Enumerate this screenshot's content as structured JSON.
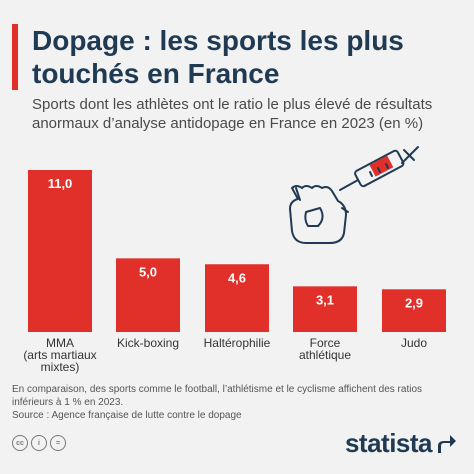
{
  "title": "Dopage : les sports les plus touchés en France",
  "subtitle": "Sports dont les athlètes ont le ratio le plus élevé de résultats anormaux d’analyse antidopage en France en 2023 (en %)",
  "footnote": "En comparaison, des sports comme le football, l’athlétisme et le cyclisme affichent des ratios inférieurs à 1 % en 2023.",
  "source": "Source : Agence française de lutte contre le dopage",
  "brand": "statista",
  "license_icons": [
    "cc",
    "i",
    "="
  ],
  "colors": {
    "accent": "#e1302a",
    "bar": "#e1302a",
    "title": "#1f3a52"
  },
  "icons": {
    "illustration": "syringe-glove-icon",
    "logo": "statista-logo-icon"
  },
  "chart_data": {
    "type": "bar",
    "categories": [
      [
        "MMA",
        "(arts martiaux",
        "mixtes)"
      ],
      [
        "Kick-boxing"
      ],
      [
        "Haltérophilie"
      ],
      [
        "Force",
        "athlétique"
      ],
      [
        "Judo"
      ]
    ],
    "values": [
      11.0,
      5.0,
      4.6,
      3.1,
      2.9
    ],
    "value_labels": [
      "11,0",
      "5,0",
      "4,6",
      "3,1",
      "2,9"
    ],
    "ylim": [
      0,
      11.0
    ],
    "grid": false,
    "legend": "none"
  }
}
